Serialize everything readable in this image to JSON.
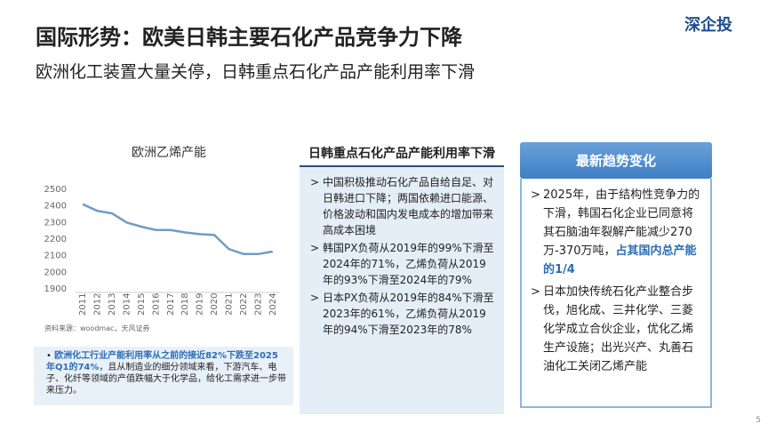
{
  "header": {
    "title": "国际形势：欧美日韩主要石化产品竞争力下降",
    "subtitle": "欧洲化工装置大量关停，日韩重点石化产品产能利用率下滑",
    "logo": "深企投"
  },
  "chart_data": {
    "type": "line",
    "title": "欧洲乙烯产能",
    "categories": [
      "2011",
      "2012",
      "2013",
      "2014",
      "2015",
      "2016",
      "2017",
      "2018",
      "2019",
      "2020",
      "2021",
      "2022",
      "2023",
      "2024"
    ],
    "values": [
      2410,
      2370,
      2355,
      2300,
      2275,
      2255,
      2255,
      2240,
      2230,
      2225,
      2140,
      2110,
      2110,
      2125
    ],
    "color": "#6f9cc4",
    "ylim": [
      1900,
      2500
    ],
    "yticks": [
      1900,
      2000,
      2100,
      2200,
      2300,
      2400,
      2500
    ],
    "grid": false,
    "source": "资料来源：woodmac，天风证券"
  },
  "note": {
    "bold": "欧洲化工行业产能利用率从之前的接近82%下跌至2025年Q1的74%",
    "text": "，且从制造业的细分领域来看，下游汽车、电子、化纤等领域的产值跌幅大于化学品，给化工需求进一步带来压力。"
  },
  "middle": {
    "title": "日韩重点石化产品产能利用率下滑",
    "items": [
      "中国积极推动石化产品自给自足、对日韩进口下降；两国依赖进口能源、价格波动和国内发电成本的增加带来高成本困境",
      "韩国PX负荷从2019年的99%下滑至2024年的71%，乙烯负荷从2019年的93%下滑至2024年的79%",
      "日本PX负荷从2019年的84%下滑至2023年的61%，乙烯负荷从2019年的94%下滑至2023年的78%"
    ]
  },
  "right": {
    "title": "最新趋势变化",
    "item1": {
      "text": "2025年，由于结构性竞争力的下滑，韩国石化企业已同意将其石脑油年裂解产能减少270万-370万吨，",
      "bold": "占其国内总产能的1/4"
    },
    "item2": "日本加快传统石化产业整合步伐，旭化成、三井化学、三菱化学成立合伙企业，优化乙烯生产设施；出光兴产、丸善石油化工关闭乙烯产能"
  },
  "page_number": "5"
}
